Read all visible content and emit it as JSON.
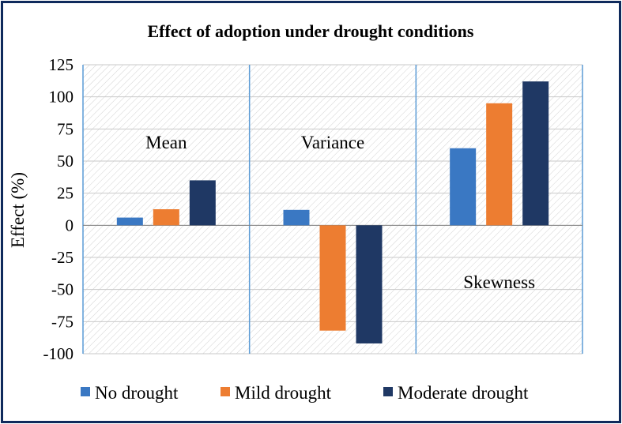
{
  "chart_data": {
    "type": "bar",
    "title": "Effect of adoption under drought conditions",
    "ylabel": "Effect (%)",
    "xlabel": "",
    "ylim": [
      -100,
      125
    ],
    "yticks": [
      125,
      100,
      75,
      50,
      25,
      0,
      -25,
      -50,
      -75,
      -100
    ],
    "categories": [
      "Mean",
      "Variance",
      "Skewness"
    ],
    "series": [
      {
        "name": "No drought",
        "color": "#3a78c3",
        "values": [
          6,
          12,
          60
        ]
      },
      {
        "name": "Mild drought",
        "color": "#ed7d31",
        "values": [
          12.5,
          -82,
          95
        ]
      },
      {
        "name": "Moderate drought",
        "color": "#1f3864",
        "values": [
          35,
          -92,
          112
        ]
      }
    ],
    "legend_position": "bottom"
  }
}
